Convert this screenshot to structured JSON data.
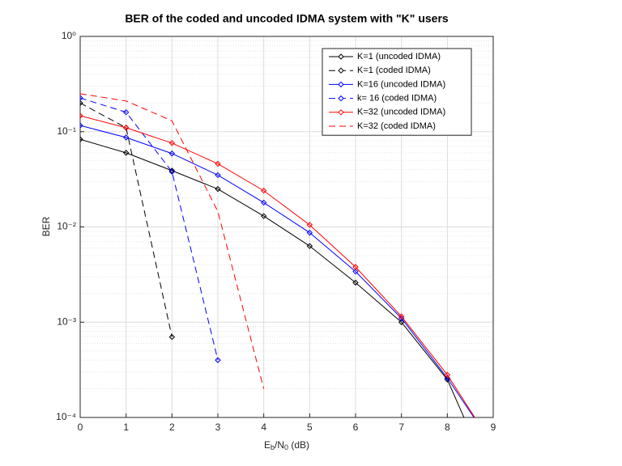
{
  "chart_data": {
    "type": "line",
    "title": "BER of the coded and uncoded IDMA system with \"K\" users",
    "x_label": [
      "E",
      "b",
      "/N",
      "0",
      " (dB)"
    ],
    "y_label": "BER",
    "x": [
      0,
      1,
      2,
      3,
      4,
      5,
      6,
      7,
      8,
      9
    ],
    "xlim": [
      0,
      9
    ],
    "xticks": [
      0,
      1,
      2,
      3,
      4,
      5,
      6,
      7,
      8,
      9
    ],
    "ylim": [
      0.0001,
      1
    ],
    "yticks": [
      {
        "value": 0.0001,
        "label": "10⁻⁴"
      },
      {
        "value": 0.001,
        "label": "10⁻³"
      },
      {
        "value": 0.01,
        "label": "10⁻²"
      },
      {
        "value": 0.1,
        "label": "10⁻¹"
      },
      {
        "value": 1,
        "label": "10⁰"
      }
    ],
    "y_log": true,
    "grid": true,
    "minor_grid": true,
    "legend_position": "upper right",
    "series": [
      {
        "name": "K=1 (uncoded IDMA)",
        "color": "#000000",
        "dash": false,
        "marker": "diamond",
        "values": [
          0.083,
          0.06,
          0.039,
          0.025,
          0.013,
          0.0063,
          0.0026,
          0.001,
          0.00025,
          2e-05
        ]
      },
      {
        "name": "K=1 (coded IDMA)",
        "color": "#000000",
        "dash": true,
        "marker": "diamond",
        "values": [
          0.2,
          0.11,
          0.0007,
          null,
          null,
          null,
          null,
          null,
          null,
          null
        ]
      },
      {
        "name": "K=16 (uncoded IDMA)",
        "color": "#0000ff",
        "dash": false,
        "marker": "diamond",
        "values": [
          0.116,
          0.087,
          0.059,
          0.035,
          0.018,
          0.0087,
          0.0034,
          0.0011,
          0.00026,
          5e-05
        ]
      },
      {
        "name": "k= 16 (coded IDMA)",
        "color": "#0000ff",
        "dash": true,
        "marker": "diamond",
        "values": [
          0.226,
          0.16,
          0.038,
          0.0004,
          null,
          null,
          null,
          null,
          null,
          null
        ]
      },
      {
        "name": "K=32 (uncoded IDMA)",
        "color": "#ff0000",
        "dash": false,
        "marker": "diamond",
        "values": [
          0.147,
          0.11,
          0.076,
          0.046,
          0.024,
          0.0105,
          0.0038,
          0.00115,
          0.00028,
          5e-05
        ]
      },
      {
        "name": "K=32 (coded IDMA)",
        "color": "#ff0000",
        "dash": true,
        "marker": null,
        "values": [
          0.25,
          0.21,
          0.13,
          0.0145,
          0.0002,
          null,
          null,
          null,
          null,
          null
        ]
      }
    ]
  }
}
